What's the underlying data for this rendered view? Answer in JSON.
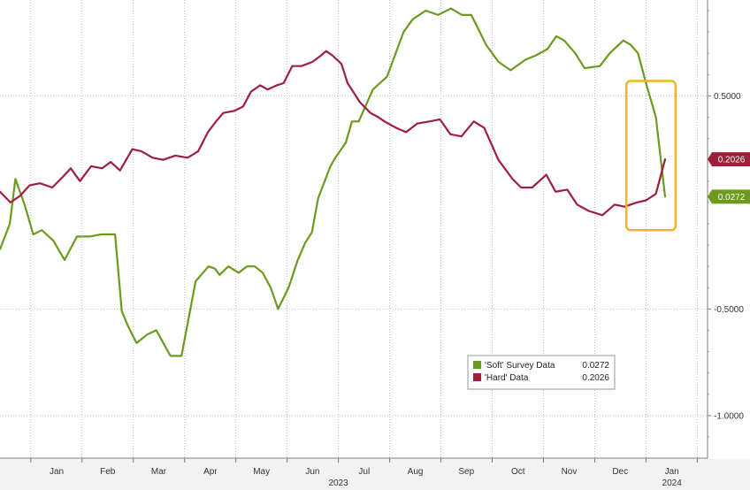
{
  "chart_data": {
    "type": "line",
    "title": "",
    "xlabel": "",
    "ylabel": "",
    "x_range": [
      2022.95,
      2024.1
    ],
    "ylim": [
      -1.2,
      0.95
    ],
    "grid": true,
    "legend_position": "bottom-right",
    "x_ticks": [
      {
        "value": 2023.042,
        "label": "Jan"
      },
      {
        "value": 2023.125,
        "label": "Feb"
      },
      {
        "value": 2023.208,
        "label": "Mar"
      },
      {
        "value": 2023.292,
        "label": "Apr"
      },
      {
        "value": 2023.375,
        "label": "May"
      },
      {
        "value": 2023.458,
        "label": "Jun"
      },
      {
        "value": 2023.542,
        "label": "Jul"
      },
      {
        "value": 2023.625,
        "label": "Aug"
      },
      {
        "value": 2023.708,
        "label": "Sep"
      },
      {
        "value": 2023.792,
        "label": "Oct"
      },
      {
        "value": 2023.875,
        "label": "Nov"
      },
      {
        "value": 2023.958,
        "label": "Dec"
      },
      {
        "value": 2024.042,
        "label": "Jan"
      }
    ],
    "year_labels": [
      {
        "value": 2023.5,
        "label": "2023"
      },
      {
        "value": 2024.042,
        "label": "2024"
      }
    ],
    "y_ticks": [
      {
        "value": 0.5,
        "label": "0.5000"
      },
      {
        "value": -0.5,
        "label": "-0.5000"
      },
      {
        "value": -1.0,
        "label": "-1.0000"
      }
    ],
    "series": [
      {
        "name": "'Soft' Survey Data",
        "last_value": "0.0272",
        "color": "#6b9a1f",
        "x": [
          2022.95,
          2022.966,
          2022.975,
          2022.99,
          2023.004,
          2023.018,
          2023.037,
          2023.055,
          2023.075,
          2023.096,
          2023.114,
          2023.137,
          2023.148,
          2023.158,
          2023.172,
          2023.189,
          2023.204,
          2023.227,
          2023.245,
          2023.268,
          2023.289,
          2023.299,
          2023.307,
          2023.321,
          2023.338,
          2023.351,
          2023.364,
          2023.377,
          2023.39,
          2023.402,
          2023.419,
          2023.434,
          2023.446,
          2023.457,
          2023.467,
          2023.487,
          2023.495,
          2023.512,
          2023.522,
          2023.533,
          2023.556,
          2023.579,
          2023.606,
          2023.621,
          2023.642,
          2023.662,
          2023.683,
          2023.701,
          2023.716,
          2023.74,
          2023.76,
          2023.78,
          2023.804,
          2023.821,
          2023.84,
          2023.854,
          2023.867,
          2023.885,
          2023.9,
          2023.925,
          2023.941,
          2023.963,
          2023.975,
          2023.987,
          2024.0,
          2024.016,
          2024.031
        ],
        "values": [
          -0.22,
          -0.1,
          0.11,
          -0.01,
          -0.15,
          -0.13,
          -0.18,
          -0.27,
          -0.16,
          -0.16,
          -0.15,
          -0.15,
          -0.51,
          -0.58,
          -0.66,
          -0.62,
          -0.6,
          -0.72,
          -0.72,
          -0.37,
          -0.3,
          -0.31,
          -0.34,
          -0.3,
          -0.33,
          -0.3,
          -0.3,
          -0.33,
          -0.4,
          -0.5,
          -0.4,
          -0.27,
          -0.19,
          -0.14,
          0.02,
          0.17,
          0.21,
          0.28,
          0.38,
          0.38,
          0.53,
          0.59,
          0.8,
          0.86,
          0.9,
          0.88,
          0.91,
          0.88,
          0.88,
          0.74,
          0.66,
          0.62,
          0.67,
          0.69,
          0.72,
          0.78,
          0.76,
          0.7,
          0.63,
          0.64,
          0.7,
          0.76,
          0.74,
          0.7,
          0.56,
          0.4,
          0.0272
        ]
      },
      {
        "name": "'Hard' Data",
        "last_value": "0.2026",
        "color": "#a01e3c",
        "x": [
          2022.95,
          2022.967,
          2022.982,
          2022.998,
          2023.015,
          2023.035,
          2023.052,
          2023.065,
          2023.08,
          2023.098,
          2023.116,
          2023.13,
          2023.145,
          2023.165,
          2023.18,
          2023.198,
          2023.215,
          2023.235,
          2023.255,
          2023.272,
          2023.288,
          2023.301,
          2023.313,
          2023.331,
          2023.345,
          2023.358,
          2023.373,
          2023.385,
          2023.4,
          2023.411,
          2023.425,
          2023.44,
          2023.458,
          2023.472,
          2023.48,
          2023.49,
          2023.505,
          2023.515,
          2023.535,
          2023.552,
          2023.565,
          2023.575,
          2023.594,
          2023.61,
          2023.628,
          2023.648,
          2023.665,
          2023.682,
          2023.7,
          2023.72,
          2023.737,
          2023.76,
          2023.783,
          2023.797,
          2023.815,
          2023.838,
          2023.853,
          2023.872,
          2023.888,
          2023.907,
          2023.929,
          2023.949,
          2023.965,
          2023.985,
          2024.0,
          2024.016,
          2024.031
        ],
        "values": [
          0.05,
          0.0,
          0.03,
          0.08,
          0.09,
          0.07,
          0.12,
          0.16,
          0.1,
          0.17,
          0.16,
          0.19,
          0.15,
          0.25,
          0.24,
          0.21,
          0.2,
          0.22,
          0.21,
          0.24,
          0.33,
          0.38,
          0.42,
          0.43,
          0.45,
          0.52,
          0.55,
          0.53,
          0.55,
          0.56,
          0.64,
          0.64,
          0.66,
          0.69,
          0.71,
          0.69,
          0.65,
          0.56,
          0.47,
          0.42,
          0.4,
          0.38,
          0.35,
          0.33,
          0.37,
          0.38,
          0.39,
          0.32,
          0.31,
          0.38,
          0.35,
          0.2,
          0.11,
          0.07,
          0.07,
          0.13,
          0.05,
          0.06,
          -0.01,
          -0.04,
          -0.06,
          -0.01,
          -0.02,
          0.0,
          0.01,
          0.04,
          0.2026
        ]
      }
    ],
    "annotation": {
      "type": "box",
      "color": "#f0b429",
      "x_from": 2023.968,
      "x_to": 2024.048,
      "y_from": 0.57,
      "y_to": -0.13
    }
  }
}
